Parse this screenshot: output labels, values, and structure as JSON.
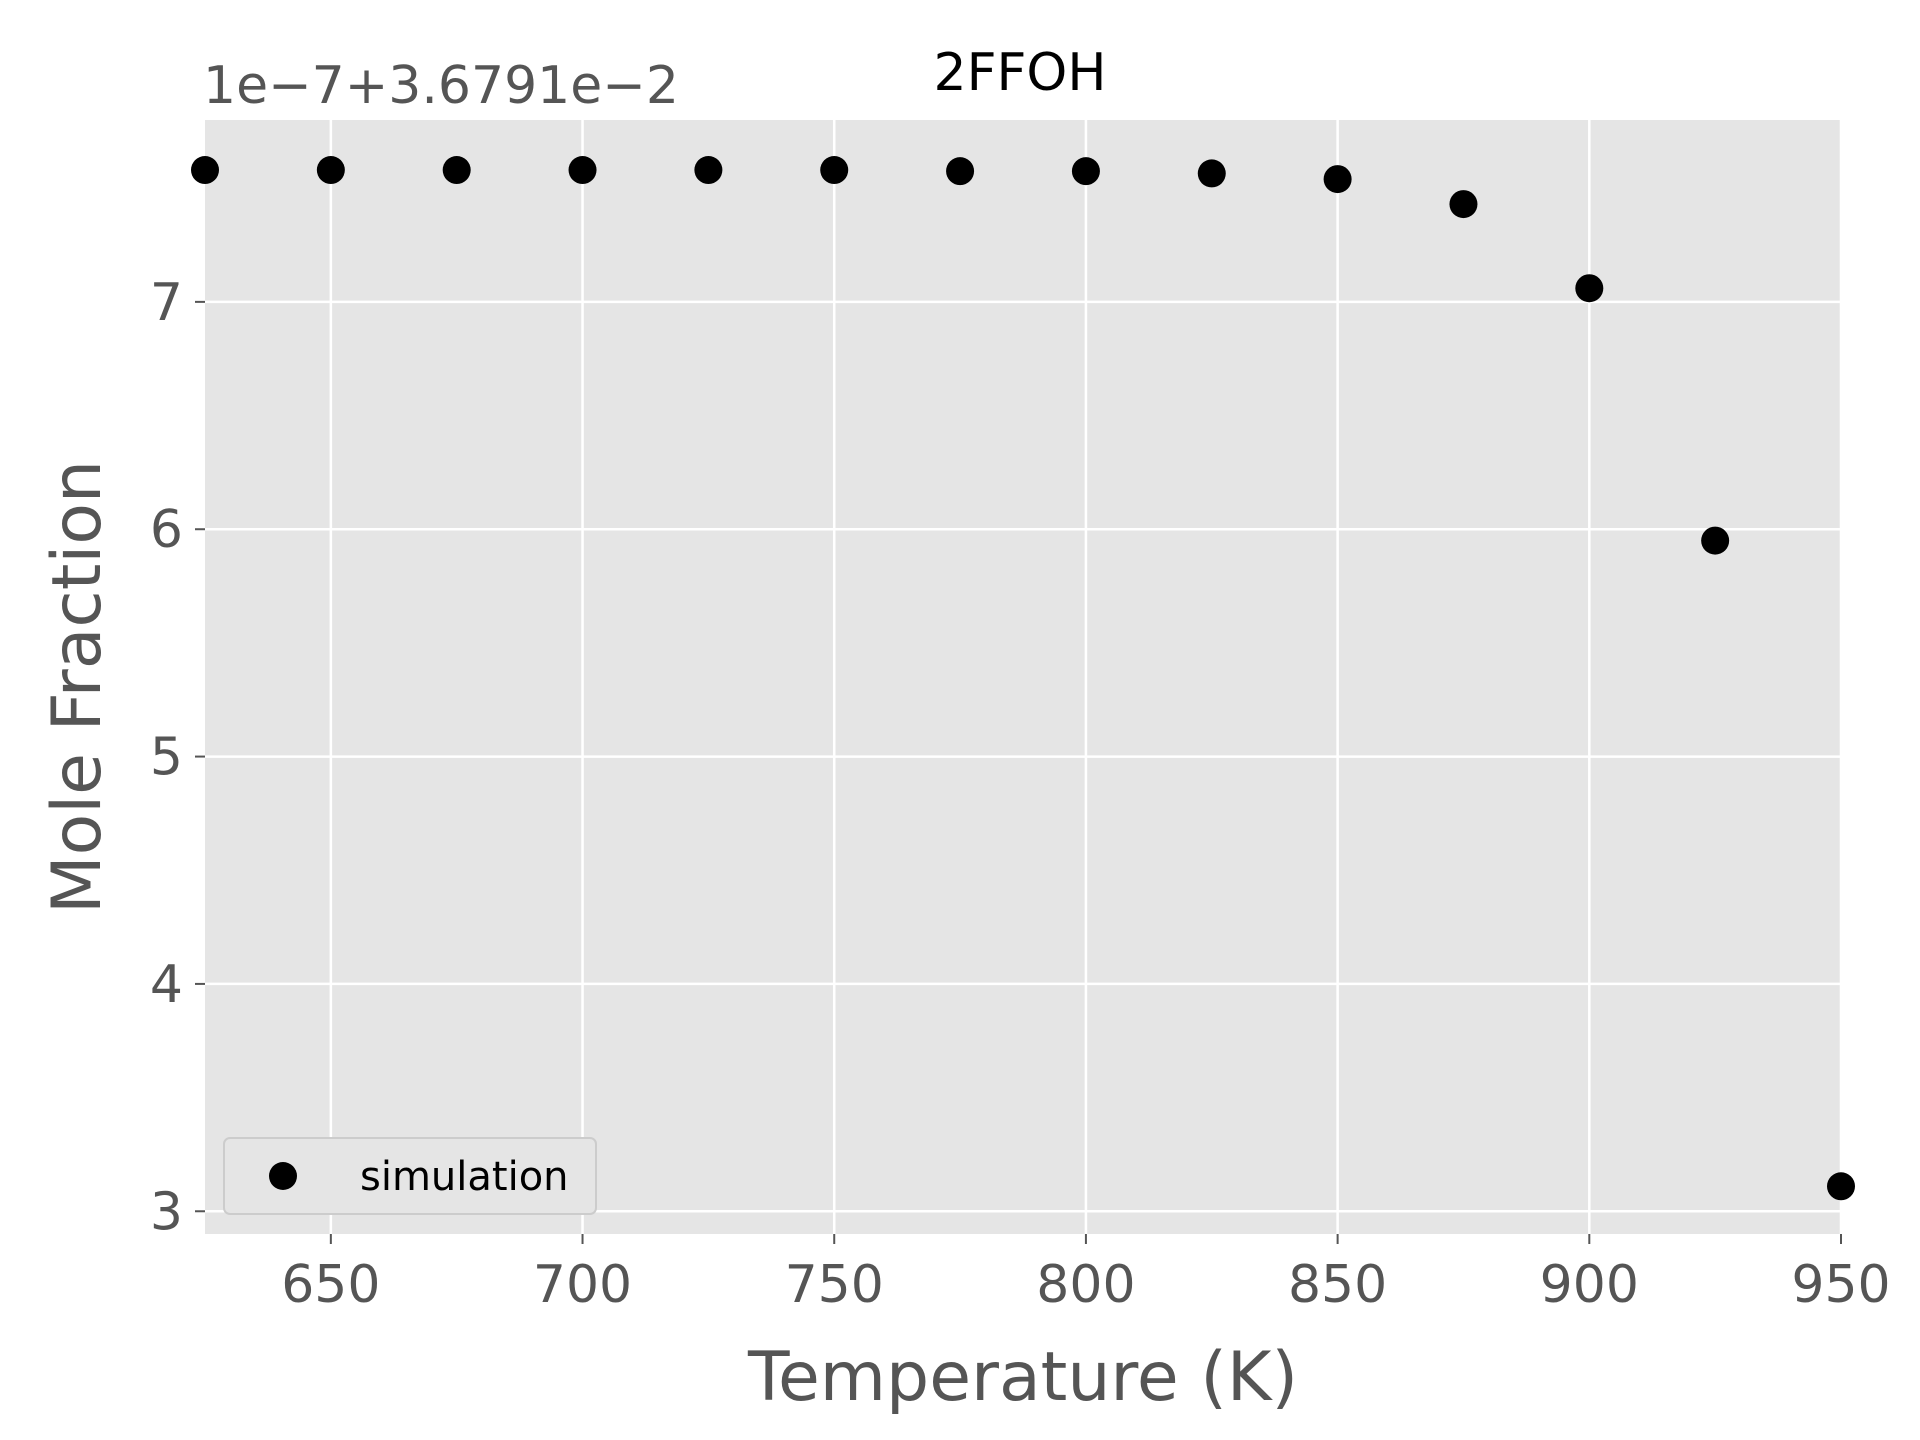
{
  "chart_data": {
    "type": "scatter",
    "title": "2FFOH",
    "xlabel": "Temperature (K)",
    "ylabel": "Mole Fraction",
    "offset_label": "1e−7+3.6791e−2",
    "xlim": [
      625,
      950
    ],
    "ylim": [
      2.9,
      7.8
    ],
    "xticks": [
      650,
      700,
      750,
      800,
      850,
      900,
      950
    ],
    "yticks": [
      3,
      4,
      5,
      6,
      7
    ],
    "grid": true,
    "legend_position": "lower-left",
    "colors": {
      "background": "#e5e5e5",
      "grid": "#ffffff",
      "marker": "#000000",
      "text": "#555555"
    },
    "series": [
      {
        "name": "simulation",
        "marker": "circle",
        "x": [
          625,
          650,
          675,
          700,
          725,
          750,
          775,
          800,
          825,
          850,
          875,
          900,
          925,
          950
        ],
        "y": [
          7.58,
          7.58,
          7.58,
          7.58,
          7.58,
          7.58,
          7.575,
          7.575,
          7.565,
          7.54,
          7.43,
          7.06,
          5.95,
          3.11
        ]
      }
    ]
  }
}
